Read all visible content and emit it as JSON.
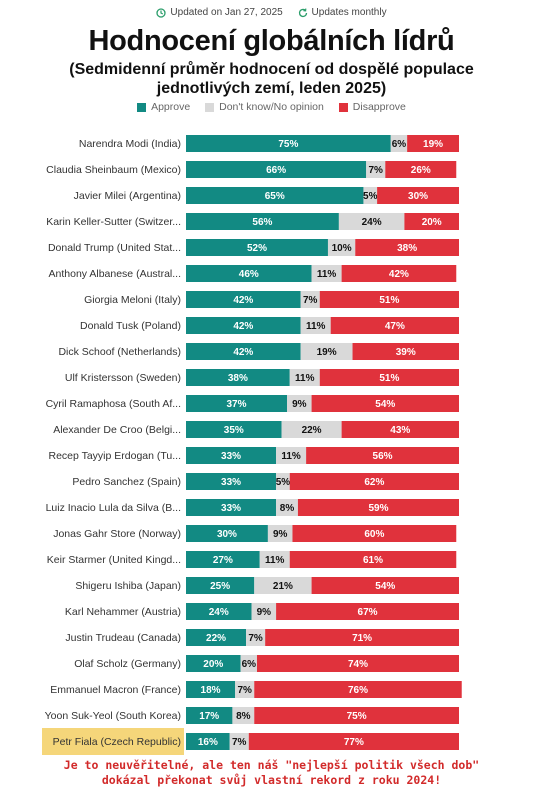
{
  "meta": {
    "updated": "Updated on Jan 27, 2025",
    "frequency": "Updates monthly"
  },
  "colors": {
    "approve": "#128a83",
    "unsure": "#d9d9d9",
    "disapprove": "#e0323c",
    "highlight": "#f5d67a"
  },
  "legend": {
    "approve": "Approve",
    "unsure": "Don't know/No opinion",
    "disapprove": "Disapprove"
  },
  "chart_data": {
    "type": "bar",
    "title": "Hodnocení globálních lídrů",
    "subtitle": "(Sedmidenní průměr hodnocení od dospělé populace jednotlivých zemí, leden 2025)",
    "stacked": true,
    "orientation": "horizontal",
    "xlim": [
      0,
      100
    ],
    "categories": [
      "Narendra Modi (India)",
      "Claudia Sheinbaum (Mexico)",
      "Javier Milei (Argentina)",
      "Karin Keller-Sutter (Switzer...",
      "Donald Trump (United Stat...",
      "Anthony Albanese (Austral...",
      "Giorgia Meloni (Italy)",
      "Donald Tusk (Poland)",
      "Dick Schoof (Netherlands)",
      "Ulf Kristersson (Sweden)",
      "Cyril Ramaphosa (South Af...",
      "Alexander De Croo (Belgi...",
      "Recep Tayyip Erdogan (Tu...",
      "Pedro Sanchez (Spain)",
      "Luiz Inacio Lula da Silva (B...",
      "Jonas Gahr Store (Norway)",
      "Keir Starmer (United Kingd...",
      "Shigeru Ishiba (Japan)",
      "Karl Nehammer (Austria)",
      "Justin Trudeau (Canada)",
      "Olaf Scholz (Germany)",
      "Emmanuel Macron (France)",
      "Yoon Suk-Yeol (South Korea)",
      "Petr Fiala (Czech Republic)"
    ],
    "highlighted_category": "Petr Fiala (Czech Republic)",
    "series": [
      {
        "name": "Approve",
        "values": [
          75,
          66,
          65,
          56,
          52,
          46,
          42,
          42,
          42,
          38,
          37,
          35,
          33,
          33,
          33,
          30,
          27,
          25,
          24,
          22,
          20,
          18,
          17,
          16
        ]
      },
      {
        "name": "Don't know/No opinion",
        "values": [
          6,
          7,
          5,
          24,
          10,
          11,
          7,
          11,
          19,
          11,
          9,
          22,
          11,
          5,
          8,
          9,
          11,
          21,
          9,
          7,
          6,
          7,
          8,
          7
        ]
      },
      {
        "name": "Disapprove",
        "values": [
          19,
          26,
          30,
          20,
          38,
          42,
          51,
          47,
          39,
          51,
          54,
          43,
          56,
          62,
          59,
          60,
          61,
          54,
          67,
          71,
          74,
          76,
          75,
          77
        ]
      }
    ]
  },
  "footer": {
    "line1": "Je to neuvěřitelné, ale ten náš \"nejlepší politik všech dob\"",
    "line2": "dokázal překonat svůj vlastní rekord z roku 2024!"
  }
}
